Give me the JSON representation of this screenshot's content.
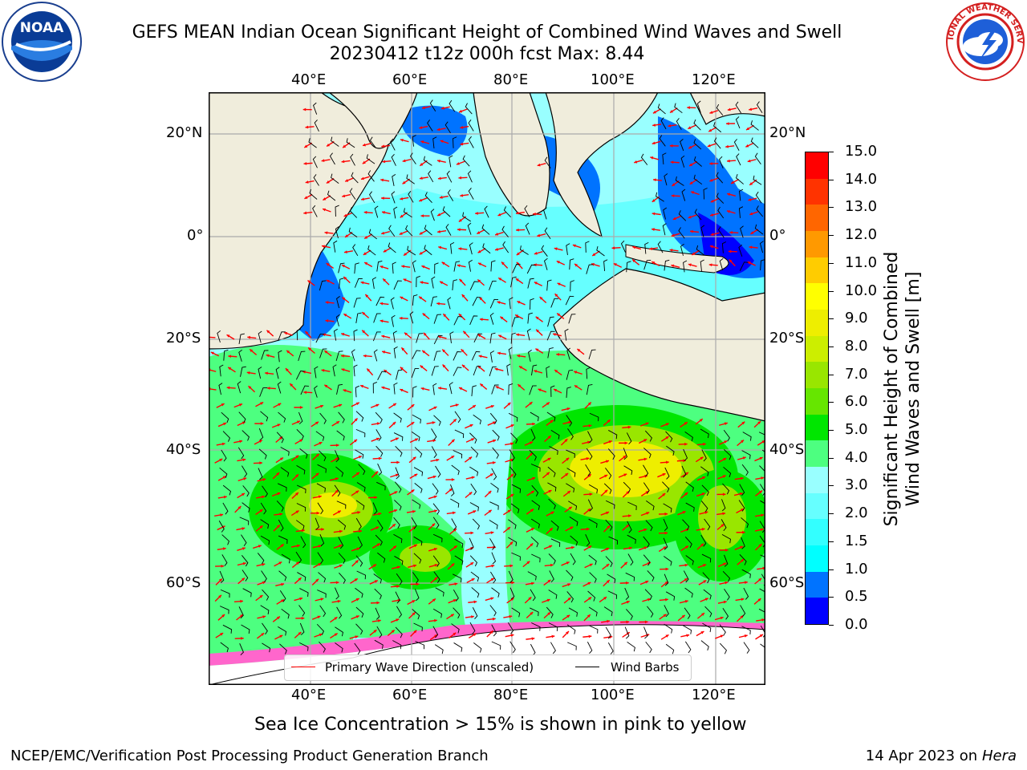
{
  "header": {
    "title_line1": "GEFS MEAN Indian Ocean Significant Height of Combined Wind Waves and Swell",
    "title_line2": "20230412 t12z 000h fcst   Max: 8.44"
  },
  "logos": {
    "noaa_text": "NOAA",
    "nws_text": "NATIONAL WEATHER SERVICE"
  },
  "map": {
    "lon_ticks": [
      "40°E",
      "60°E",
      "80°E",
      "100°E",
      "120°E"
    ],
    "lat_ticks": [
      "20°N",
      "0°",
      "20°S",
      "40°S",
      "60°S"
    ],
    "legend": {
      "wave_label": "Primary Wave Direction (unscaled)",
      "wind_label": "Wind Barbs"
    },
    "colors": {
      "land": "#f0eddc",
      "wave_arrow": "#ff0000",
      "wind_barb": "#000000",
      "sea_ice": "#ff66cc"
    }
  },
  "colorbar": {
    "label": "Significant Height of Combined Wind Waves and Swell [m]",
    "label_line1": "Significant Height of Combined",
    "label_line2": "Wind Waves and Swell [m]",
    "ticks": [
      "15.0",
      "14.0",
      "13.0",
      "12.0",
      "11.0",
      "10.0",
      "9.0",
      "8.0",
      "7.0",
      "6.0",
      "5.0",
      "4.0",
      "3.0",
      "2.0",
      "1.5",
      "1.0",
      "0.5",
      "0.0"
    ],
    "colors_bottom_to_top": [
      "#0000ff",
      "#0073ff",
      "#00ffff",
      "#33ffff",
      "#66ffff",
      "#99ffff",
      "#4dff80",
      "#00e600",
      "#66e600",
      "#99e600",
      "#ccee00",
      "#eeee00",
      "#ffff00",
      "#ffcc00",
      "#ff9900",
      "#ff6600",
      "#ff3300",
      "#ff0000"
    ]
  },
  "notes": {
    "sea_ice": "Sea Ice Concentration > 15% is shown in pink to yellow"
  },
  "footer": {
    "left": "NCEP/EMC/Verification Post Processing Product Generation Branch",
    "date": "14 Apr 2023 on ",
    "host": "Hera"
  }
}
